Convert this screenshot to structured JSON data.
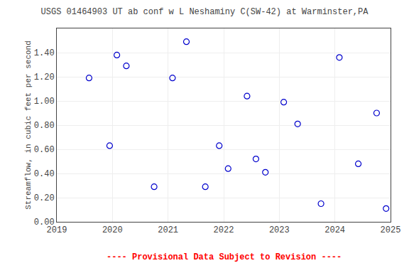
{
  "chart_data": {
    "type": "scatter",
    "title": "USGS 01464903 UT ab conf w L Neshaminy C(SW-42) at Warminster,PA",
    "ylabel": "Streamflow, in cubic feet per second",
    "x": [
      2019.58,
      2019.95,
      2020.08,
      2020.25,
      2020.75,
      2021.08,
      2021.33,
      2021.67,
      2021.92,
      2022.08,
      2022.42,
      2022.58,
      2022.75,
      2023.08,
      2023.33,
      2023.75,
      2024.08,
      2024.42,
      2024.75,
      2024.92
    ],
    "values": [
      1.19,
      0.63,
      1.38,
      1.29,
      0.29,
      1.19,
      1.49,
      0.29,
      0.63,
      0.44,
      1.04,
      0.52,
      0.41,
      0.99,
      0.81,
      0.15,
      1.36,
      0.48,
      0.9,
      0.11
    ],
    "color": "#0000CC",
    "marker": "circle-open",
    "xlim": [
      2019,
      2025
    ],
    "ylim": [
      0.0,
      1.6
    ],
    "xticks": [
      2019,
      2020,
      2021,
      2022,
      2023,
      2024,
      2025
    ],
    "yticks": [
      {
        "value": 0.0,
        "label": "0.00"
      },
      {
        "value": 0.2,
        "label": "0.20"
      },
      {
        "value": 0.4,
        "label": "0.40"
      },
      {
        "value": 0.6,
        "label": "0.60"
      },
      {
        "value": 0.8,
        "label": "0.80"
      },
      {
        "value": 1.0,
        "label": "1.00"
      },
      {
        "value": 1.2,
        "label": "1.20"
      },
      {
        "value": 1.4,
        "label": "1.40"
      }
    ],
    "grid": true,
    "annotations": [
      {
        "text": "---- Provisional Data Subject to Revision ----",
        "color": "#ff0000"
      }
    ]
  }
}
